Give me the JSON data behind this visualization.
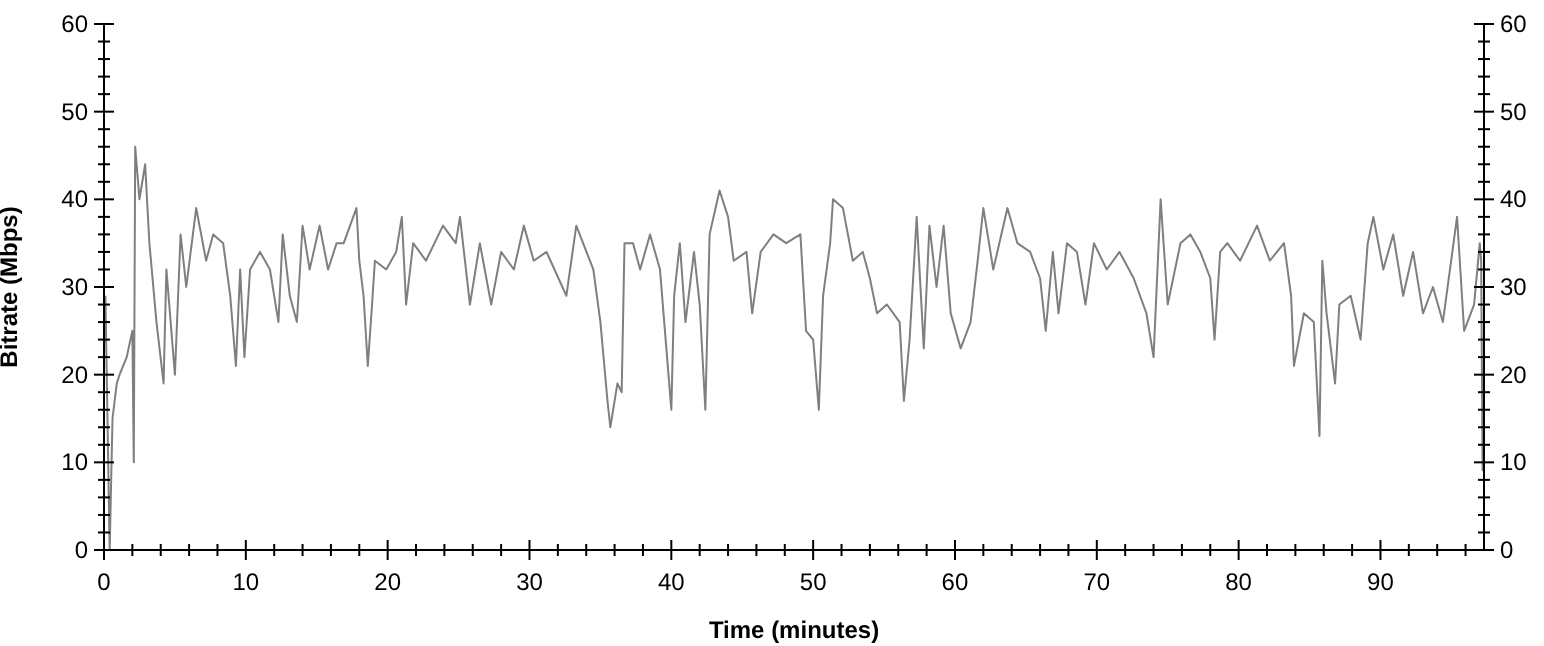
{
  "chart_data": {
    "type": "line",
    "xlabel": "Time (minutes)",
    "ylabel": "Bitrate (Mbps)",
    "x": [
      0.1,
      0.4,
      0.6,
      0.9,
      1.1,
      1.6,
      2.0,
      2.1,
      2.2,
      2.5,
      2.9,
      3.2,
      3.7,
      4.2,
      4.4,
      5.0,
      5.4,
      5.8,
      6.5,
      7.2,
      7.7,
      8.4,
      8.9,
      9.3,
      9.6,
      9.9,
      10.3,
      11,
      11.7,
      12.3,
      12.6,
      13.1,
      13.6,
      14,
      14.5,
      15.2,
      15.8,
      16.4,
      16.9,
      17.8,
      18,
      18.3,
      18.6,
      18.9,
      19.1,
      19.9,
      20.6,
      21,
      21.3,
      21.8,
      22.7,
      23.9,
      24.8,
      25.1,
      25.8,
      26.5,
      27.3,
      28,
      28.9,
      29.6,
      30.3,
      31.2,
      32.6,
      33.3,
      34.5,
      35,
      35.5,
      35.7,
      36.2,
      36.5,
      36.7,
      37.3,
      37.8,
      38.5,
      39.2,
      39.6,
      40,
      40.2,
      40.6,
      41,
      41.6,
      42,
      42.4,
      42.7,
      43.4,
      44,
      44.4,
      45.3,
      45.7,
      46.3,
      47.2,
      48.1,
      49.1,
      49.5,
      50,
      50.4,
      50.7,
      51.2,
      51.4,
      52.1,
      52.8,
      53.5,
      54,
      54.5,
      55.2,
      56.1,
      56.4,
      56.8,
      57.3,
      57.8,
      58.2,
      58.7,
      59.2,
      59.7,
      60.4,
      61.1,
      61.6,
      62,
      62.7,
      63.7,
      64.4,
      65.3,
      66,
      66.4,
      66.9,
      67.3,
      67.9,
      68.6,
      69.2,
      69.8,
      70.7,
      71.6,
      72.6,
      73.5,
      74,
      74.5,
      75,
      75.9,
      76.6,
      77.3,
      78,
      78.3,
      78.7,
      79.2,
      80.1,
      81.3,
      82.2,
      83.2,
      83.7,
      83.9,
      84.6,
      85.3,
      85.7,
      85.9,
      86.2,
      86.8,
      87.1,
      87.9,
      88.6,
      89.1,
      89.5,
      90.2,
      90.9,
      91.6,
      92.3,
      93,
      93.7,
      94.4,
      95.4,
      95.9,
      96.6,
      97,
      97.1,
      97.2
    ],
    "series": [
      {
        "color": "#7f7f7f",
        "values": [
          29,
          0,
          15,
          19,
          20,
          22,
          25,
          10,
          46,
          40,
          44,
          35,
          26,
          19,
          32,
          20,
          36,
          30,
          39,
          33,
          36,
          35,
          29,
          21,
          32,
          22,
          32,
          34,
          32,
          26,
          36,
          29,
          26,
          37,
          32,
          37,
          32,
          35,
          35,
          39,
          33,
          29,
          21,
          28,
          33,
          32,
          34,
          38,
          28,
          35,
          33,
          37,
          35,
          38,
          28,
          35,
          28,
          34,
          32,
          37,
          33,
          34,
          29,
          37,
          32,
          26,
          17,
          14,
          19,
          18,
          35,
          35,
          32,
          36,
          32,
          24,
          16,
          29,
          35,
          26,
          34,
          28,
          16,
          36,
          41,
          38,
          33,
          34,
          27,
          34,
          36,
          35,
          36,
          25,
          24,
          16,
          29,
          35,
          40,
          39,
          33,
          34,
          31,
          27,
          28,
          26,
          17,
          24,
          38,
          23,
          37,
          30,
          37,
          27,
          23,
          26,
          33,
          39,
          32,
          39,
          35,
          34,
          31,
          25,
          34,
          27,
          35,
          34,
          28,
          35,
          32,
          34,
          31,
          27,
          22,
          40,
          28,
          35,
          36,
          34,
          31,
          24,
          34,
          35,
          33,
          37,
          33,
          35,
          29,
          21,
          27,
          26,
          13,
          33,
          27,
          19,
          28,
          29,
          24,
          35,
          38,
          32,
          36,
          29,
          34,
          27,
          30,
          26,
          38,
          25,
          28,
          35,
          33,
          9
        ]
      }
    ],
    "xlim": [
      0,
      97.3
    ],
    "xticks": [
      0,
      {
        "value": 2,
        "label": null
      },
      {
        "value": 4,
        "label": null
      },
      {
        "value": 6,
        "label": null
      },
      {
        "value": 8,
        "label": null
      },
      10,
      {
        "value": 12,
        "label": null
      },
      {
        "value": 14,
        "label": null
      },
      {
        "value": 16,
        "label": null
      },
      {
        "value": 18,
        "label": null
      },
      20,
      {
        "value": 22,
        "label": null
      },
      {
        "value": 24,
        "label": null
      },
      {
        "value": 26,
        "label": null
      },
      {
        "value": 28,
        "label": null
      },
      30,
      {
        "value": 32,
        "label": null
      },
      {
        "value": 34,
        "label": null
      },
      {
        "value": 36,
        "label": null
      },
      {
        "value": 38,
        "label": null
      },
      40,
      {
        "value": 42,
        "label": null
      },
      {
        "value": 44,
        "label": null
      },
      {
        "value": 46,
        "label": null
      },
      {
        "value": 48,
        "label": null
      },
      50,
      {
        "value": 52,
        "label": null
      },
      {
        "value": 54,
        "label": null
      },
      {
        "value": 56,
        "label": null
      },
      {
        "value": 58,
        "label": null
      },
      60,
      {
        "value": 62,
        "label": null
      },
      {
        "value": 64,
        "label": null
      },
      {
        "value": 66,
        "label": null
      },
      {
        "value": 68,
        "label": null
      },
      70,
      {
        "value": 72,
        "label": null
      },
      {
        "value": 74,
        "label": null
      },
      {
        "value": 76,
        "label": null
      },
      {
        "value": 78,
        "label": null
      },
      80,
      {
        "value": 82,
        "label": null
      },
      {
        "value": 84,
        "label": null
      },
      {
        "value": 86,
        "label": null
      },
      {
        "value": 88,
        "label": null
      },
      90,
      {
        "value": 92,
        "label": null
      },
      {
        "value": 94,
        "label": null
      },
      {
        "value": 96,
        "label": null
      }
    ],
    "ylim": [
      0,
      60
    ],
    "yticks": [
      0,
      {
        "value": 2,
        "label": null
      },
      {
        "value": 4,
        "label": null
      },
      {
        "value": 6,
        "label": null
      },
      {
        "value": 8,
        "label": null
      },
      10,
      {
        "value": 12,
        "label": null
      },
      {
        "value": 14,
        "label": null
      },
      {
        "value": 16,
        "label": null
      },
      {
        "value": 18,
        "label": null
      },
      20,
      {
        "value": 22,
        "label": null
      },
      {
        "value": 24,
        "label": null
      },
      {
        "value": 26,
        "label": null
      },
      {
        "value": 28,
        "label": null
      },
      30,
      {
        "value": 32,
        "label": null
      },
      {
        "value": 34,
        "label": null
      },
      {
        "value": 36,
        "label": null
      },
      {
        "value": 38,
        "label": null
      },
      40,
      {
        "value": 42,
        "label": null
      },
      {
        "value": 44,
        "label": null
      },
      {
        "value": 46,
        "label": null
      },
      {
        "value": 48,
        "label": null
      },
      50,
      {
        "value": 52,
        "label": null
      },
      {
        "value": 54,
        "label": null
      },
      {
        "value": 56,
        "label": null
      },
      {
        "value": 58,
        "label": null
      },
      60
    ],
    "y2lim": [
      0,
      60
    ],
    "y2ticks": [
      0,
      {
        "value": 2,
        "label": null
      },
      {
        "value": 4,
        "label": null
      },
      {
        "value": 6,
        "label": null
      },
      {
        "value": 8,
        "label": null
      },
      10,
      {
        "value": 12,
        "label": null
      },
      {
        "value": 14,
        "label": null
      },
      {
        "value": 16,
        "label": null
      },
      {
        "value": 18,
        "label": null
      },
      20,
      {
        "value": 22,
        "label": null
      },
      {
        "value": 24,
        "label": null
      },
      {
        "value": 26,
        "label": null
      },
      {
        "value": 28,
        "label": null
      },
      30,
      {
        "value": 32,
        "label": null
      },
      {
        "value": 34,
        "label": null
      },
      {
        "value": 36,
        "label": null
      },
      {
        "value": 38,
        "label": null
      },
      40,
      {
        "value": 42,
        "label": null
      },
      {
        "value": 44,
        "label": null
      },
      {
        "value": 46,
        "label": null
      },
      {
        "value": 48,
        "label": null
      },
      50,
      {
        "value": 52,
        "label": null
      },
      {
        "value": 54,
        "label": null
      },
      {
        "value": 56,
        "label": null
      },
      {
        "value": 58,
        "label": null
      },
      60
    ]
  }
}
